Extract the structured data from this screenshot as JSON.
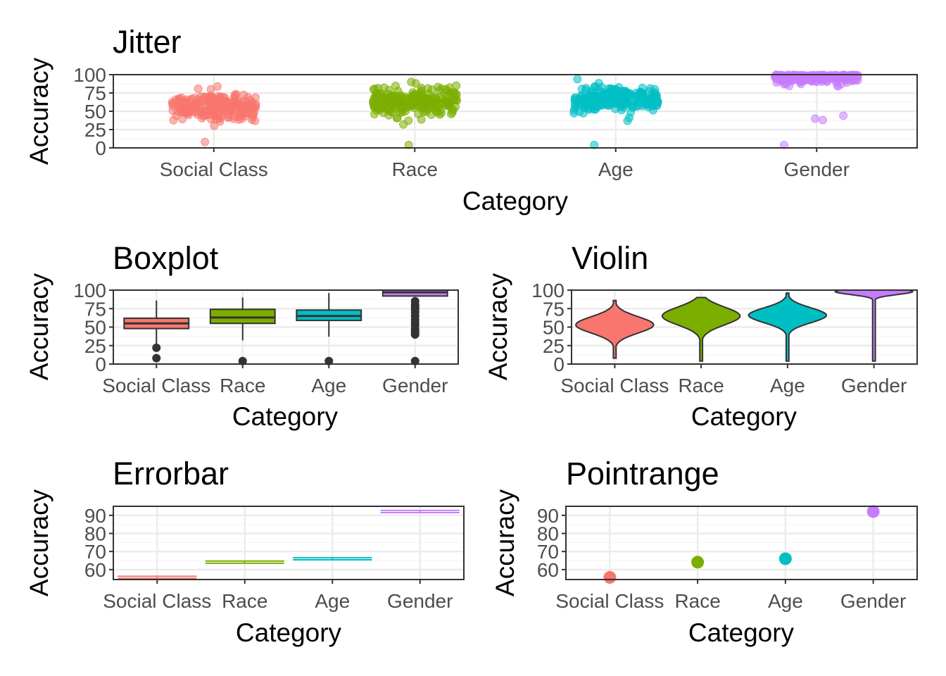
{
  "chart_data": [
    {
      "type": "scatter",
      "variant": "jitter",
      "title": "Jitter",
      "xlabel": "Category",
      "ylabel": "Accuracy",
      "categories": [
        "Social Class",
        "Race",
        "Age",
        "Gender"
      ],
      "yticks": [
        0,
        25,
        50,
        75,
        100
      ],
      "ylim": [
        0,
        100
      ],
      "grid": true,
      "legend": "none",
      "summary": [
        {
          "category": "Social Class",
          "center": 56,
          "spread": 10,
          "low": 21,
          "high": 86,
          "outliers": [
            8
          ]
        },
        {
          "category": "Race",
          "center": 64,
          "spread": 10,
          "low": 32,
          "high": 90,
          "outliers": [
            4
          ]
        },
        {
          "category": "Age",
          "center": 66,
          "spread": 8,
          "low": 36,
          "high": 96,
          "outliers": [
            4
          ]
        },
        {
          "category": "Gender",
          "center": 94,
          "spread": 5,
          "low": 32,
          "high": 100,
          "outliers": [
            44,
            40,
            38,
            4
          ]
        }
      ]
    },
    {
      "type": "box",
      "title": "Boxplot",
      "xlabel": "Category",
      "ylabel": "Accuracy",
      "categories": [
        "Social Class",
        "Race",
        "Age",
        "Gender"
      ],
      "yticks": [
        0,
        25,
        50,
        75,
        100
      ],
      "ylim": [
        0,
        100
      ],
      "grid": true,
      "legend": "none",
      "boxes": [
        {
          "category": "Social Class",
          "min": 25,
          "q1": 48,
          "median": 55,
          "q3": 62,
          "max": 86,
          "outliers": [
            22,
            8
          ]
        },
        {
          "category": "Race",
          "min": 32,
          "q1": 55,
          "median": 63,
          "q3": 74,
          "max": 90,
          "outliers": [
            4
          ]
        },
        {
          "category": "Age",
          "min": 37,
          "q1": 59,
          "median": 65,
          "q3": 73,
          "max": 96,
          "outliers": [
            4
          ]
        },
        {
          "category": "Gender",
          "min": 92,
          "q1": 92,
          "median": 97,
          "q3": 100,
          "max": 100,
          "outliers": [
            85,
            80,
            77,
            74,
            70,
            65,
            60,
            56,
            52,
            47,
            44,
            42,
            40,
            4
          ]
        }
      ]
    },
    {
      "type": "violin",
      "title": "Violin",
      "xlabel": "Category",
      "ylabel": "Accuracy",
      "categories": [
        "Social Class",
        "Race",
        "Age",
        "Gender"
      ],
      "yticks": [
        0,
        25,
        50,
        75,
        100
      ],
      "ylim": [
        0,
        100
      ],
      "grid": true,
      "legend": "none",
      "violins": [
        {
          "category": "Social Class",
          "min": 8,
          "max": 86,
          "mode": 53,
          "spread": 11
        },
        {
          "category": "Race",
          "min": 4,
          "max": 90,
          "mode": 65,
          "spread": 12
        },
        {
          "category": "Age",
          "min": 4,
          "max": 96,
          "mode": 66,
          "spread": 10
        },
        {
          "category": "Gender",
          "min": 4,
          "max": 100,
          "mode": 98,
          "spread": 4
        }
      ]
    },
    {
      "type": "errorbar",
      "title": "Errorbar",
      "xlabel": "Category",
      "ylabel": "Accuracy",
      "categories": [
        "Social Class",
        "Race",
        "Age",
        "Gender"
      ],
      "yticks": [
        60,
        70,
        80,
        90
      ],
      "ylim": [
        54.5,
        95
      ],
      "grid": true,
      "legend": "none",
      "ranges": [
        {
          "category": "Social Class",
          "ymin": 55.1,
          "ymax": 56.3
        },
        {
          "category": "Race",
          "ymin": 63.5,
          "ymax": 64.7
        },
        {
          "category": "Age",
          "ymin": 65.4,
          "ymax": 66.5
        },
        {
          "category": "Gender",
          "ymin": 91.5,
          "ymax": 92.7
        }
      ]
    },
    {
      "type": "scatter",
      "variant": "pointrange",
      "title": "Pointrange",
      "xlabel": "Category",
      "ylabel": "Accuracy",
      "categories": [
        "Social Class",
        "Race",
        "Age",
        "Gender"
      ],
      "yticks": [
        60,
        70,
        80,
        90
      ],
      "ylim": [
        54.5,
        95
      ],
      "grid": true,
      "legend": "none",
      "points": [
        {
          "category": "Social Class",
          "y": 55.7,
          "ymin": 55.1,
          "ymax": 56.3
        },
        {
          "category": "Race",
          "y": 64.1,
          "ymin": 63.5,
          "ymax": 64.7
        },
        {
          "category": "Age",
          "y": 66.0,
          "ymin": 65.4,
          "ymax": 66.5
        },
        {
          "category": "Gender",
          "y": 92.1,
          "ymin": 91.5,
          "ymax": 92.7
        }
      ]
    }
  ],
  "colors": {
    "Social Class": "#F8766D",
    "Race": "#7CAE00",
    "Age": "#00BFC4",
    "Gender": "#C77CFF",
    "outline": "#333333",
    "grid_major": "#ebebeb",
    "grid_minor": "#f5f5f5",
    "tick_text": "#4d4d4d"
  }
}
